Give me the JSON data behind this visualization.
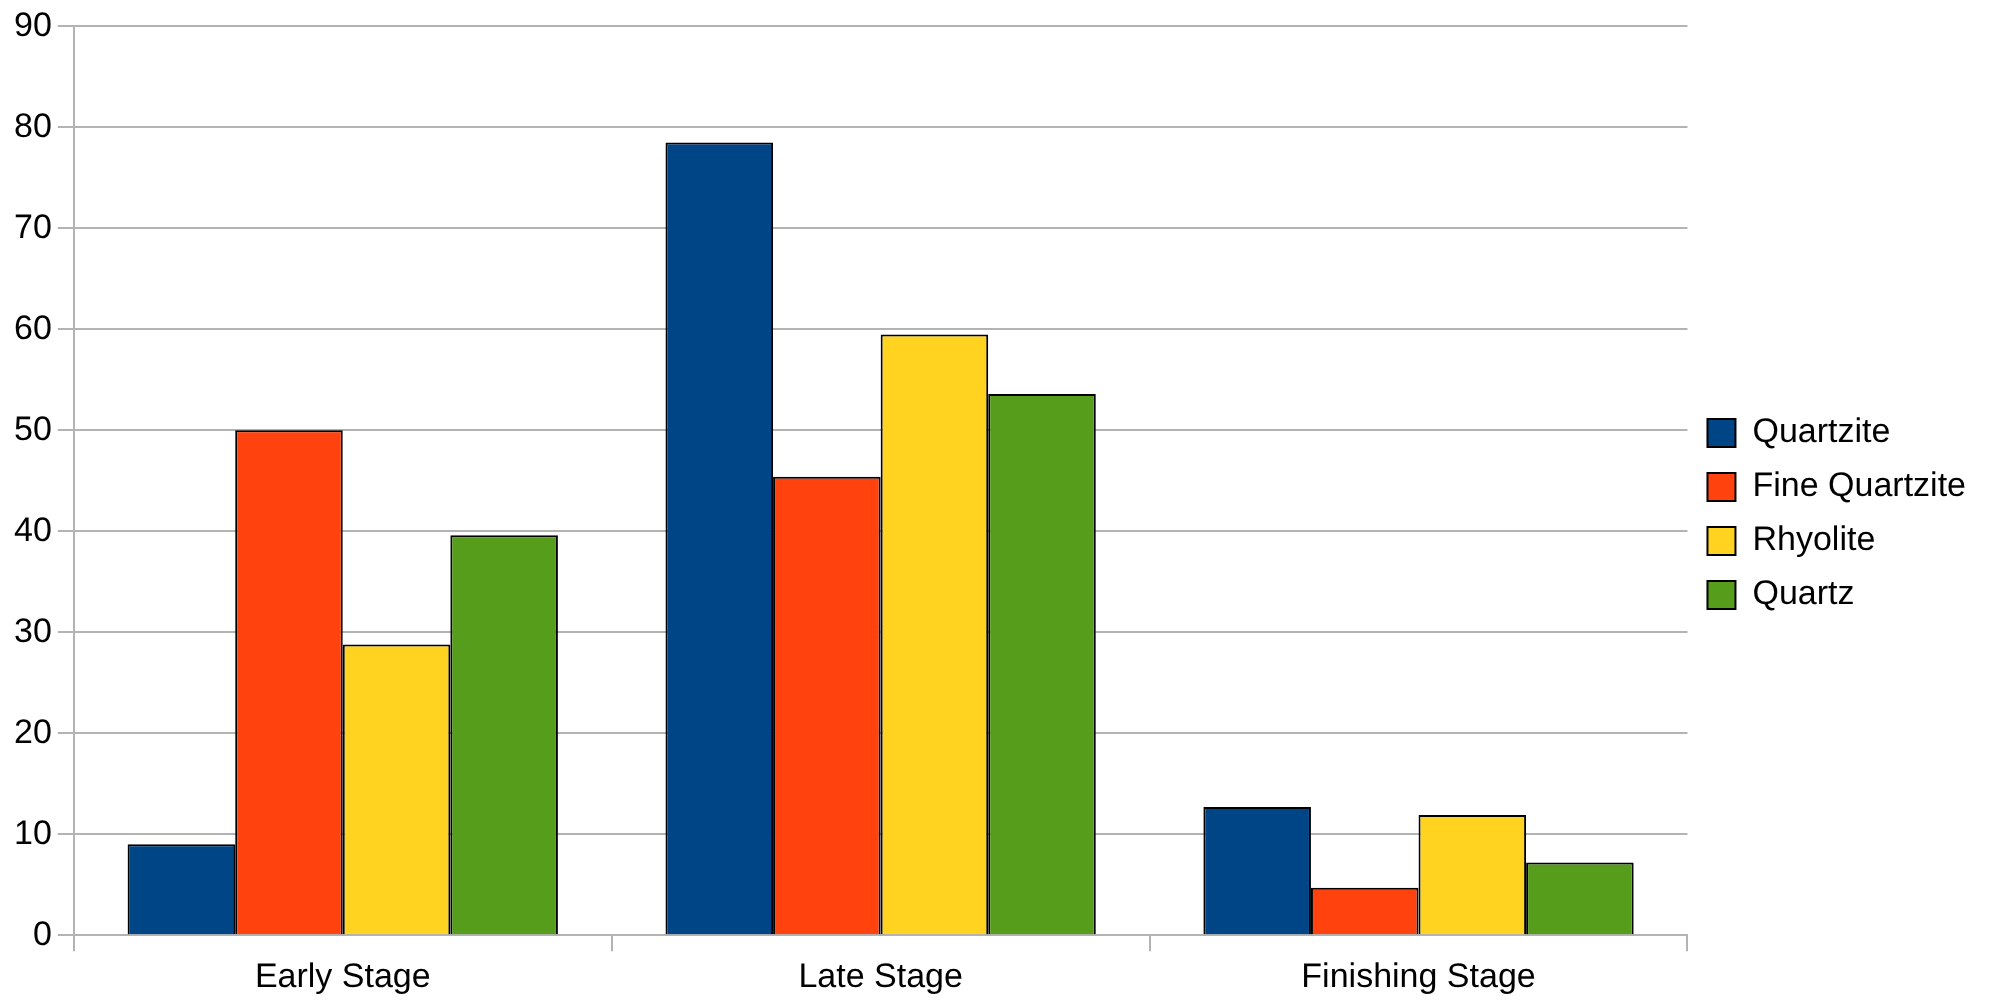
{
  "chart_data": {
    "type": "bar",
    "categories": [
      "Early Stage",
      "Late Stage",
      "Finishing Stage"
    ],
    "series": [
      {
        "name": "Quartzite",
        "color": "#004586",
        "values": [
          9.0,
          78.5,
          12.7
        ]
      },
      {
        "name": "Fine Quartzite",
        "color": "#ff420e",
        "values": [
          50.0,
          45.4,
          4.7
        ]
      },
      {
        "name": "Rhyolite",
        "color": "#ffd320",
        "values": [
          28.8,
          59.5,
          11.9
        ]
      },
      {
        "name": "Quartz",
        "color": "#579d1c",
        "values": [
          39.6,
          53.6,
          7.2
        ]
      }
    ],
    "ylim": [
      0,
      90
    ],
    "yticks": [
      0,
      10,
      20,
      30,
      40,
      50,
      60,
      70,
      80,
      90
    ],
    "grid": "y",
    "legend": "right"
  }
}
